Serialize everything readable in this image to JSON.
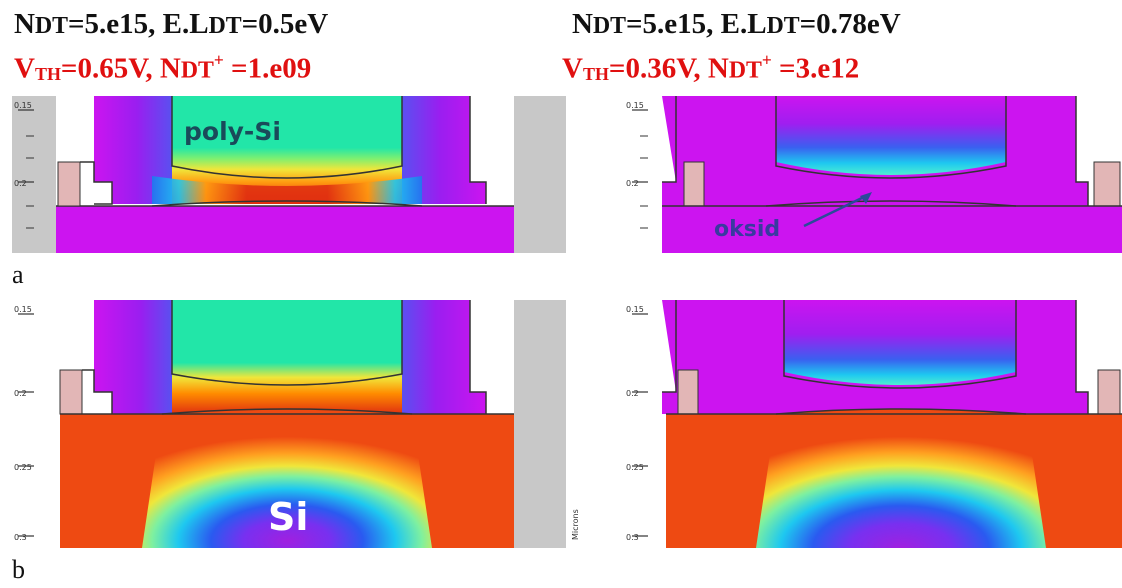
{
  "panels": {
    "left_header": {
      "line1": {
        "N": "N",
        "DT": "DT",
        "eq1": "=5.e15, E.L",
        "DT2": "DT",
        "val": "=0.5eV"
      },
      "line2": {
        "V": "V",
        "TH": "TH",
        "eq1": "=0.65V,  N",
        "DT": "DT",
        "plus": "+",
        "val": " =1.e09"
      }
    },
    "right_header": {
      "line1": {
        "N": "N",
        "DT": "DT",
        "eq1": "=5.e15, E.L",
        "DT2": "DT",
        "val": "=0.78eV"
      },
      "line2": {
        "V": "V",
        "TH": "TH",
        "eq1": "=0.36V,  N",
        "DT": "DT",
        "plus": "+",
        "val": " =3.e12"
      }
    }
  },
  "row_labels": {
    "a": "a",
    "b": "b"
  },
  "annotations": {
    "poly": "poly-Si",
    "oksid": "oksid",
    "si": "Si",
    "microns": "Microns"
  },
  "axis_ticks": {
    "top": [
      "0.15",
      "0.2"
    ],
    "bottom": [
      "0.15",
      "0.2",
      "0.25",
      "0.3"
    ]
  },
  "colors": {
    "magenta": "#cc14f0",
    "violet": "#9a1ef0",
    "teal": "#22e6a8",
    "cyan": "#1ec8f0",
    "blue": "#1e78f0",
    "orange": "#ff8c00",
    "red": "#ee3a10",
    "pink": "#e2b6b6",
    "gray": "#c8c8c8"
  }
}
